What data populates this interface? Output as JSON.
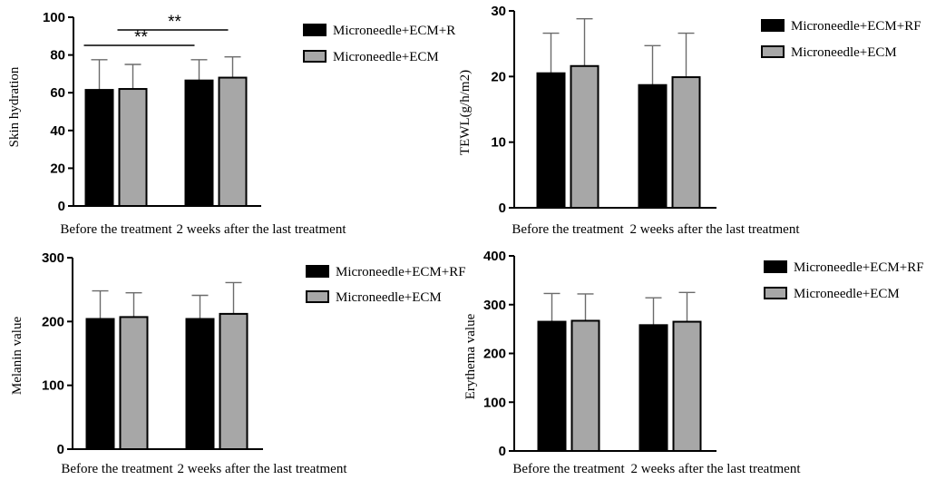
{
  "chart_data": [
    {
      "type": "bar",
      "title": "",
      "ylabel": "Skin hydration",
      "xlabel": "",
      "ylim": [
        0,
        100
      ],
      "yticks": [
        0,
        20,
        40,
        60,
        80,
        100
      ],
      "categories": [
        "Before the treatment",
        "2 weeks after the last treatment"
      ],
      "series": [
        {
          "name": "Microneedle+ECM+R",
          "color": "#000000",
          "values": [
            61.5,
            66.5
          ],
          "errors": [
            16,
            11
          ]
        },
        {
          "name": "Microneedle+ECM",
          "color": "#a7a7a7",
          "values": [
            62,
            68
          ],
          "errors": [
            13,
            11
          ]
        }
      ],
      "significance": [
        {
          "label": "**",
          "from": "Before the treatment",
          "to": "2 weeks after the last treatment",
          "series": "Microneedle+ECM+R"
        },
        {
          "label": "**",
          "from": "Before the treatment",
          "to": "2 weeks after the last treatment",
          "series": "Microneedle+ECM"
        }
      ]
    },
    {
      "type": "bar",
      "title": "",
      "ylabel": "TEWL(g/h/m2)",
      "xlabel": "",
      "ylim": [
        0,
        30
      ],
      "yticks": [
        0,
        10,
        20,
        30
      ],
      "categories": [
        "Before the treatment",
        "2 weeks after the last treatment"
      ],
      "series": [
        {
          "name": "Microneedle+ECM+RF",
          "color": "#000000",
          "values": [
            20.5,
            18.7
          ],
          "errors": [
            6.1,
            6.0
          ]
        },
        {
          "name": "Microneedle+ECM",
          "color": "#a7a7a7",
          "values": [
            21.6,
            19.9
          ],
          "errors": [
            7.2,
            6.7
          ]
        }
      ]
    },
    {
      "type": "bar",
      "title": "",
      "ylabel": "Melanin value",
      "xlabel": "",
      "ylim": [
        0,
        300
      ],
      "yticks": [
        0,
        100,
        200,
        300
      ],
      "categories": [
        "Before the treatment",
        "2 weeks after the last treatment"
      ],
      "series": [
        {
          "name": "Microneedle+ECM+RF",
          "color": "#000000",
          "values": [
            204,
            204
          ],
          "errors": [
            44,
            37
          ]
        },
        {
          "name": "Microneedle+ECM",
          "color": "#a7a7a7",
          "values": [
            207,
            212
          ],
          "errors": [
            38,
            49
          ]
        }
      ]
    },
    {
      "type": "bar",
      "title": "",
      "ylabel": "Erythema value",
      "xlabel": "",
      "ylim": [
        0,
        400
      ],
      "yticks": [
        0,
        100,
        200,
        300,
        400
      ],
      "categories": [
        "Before the treatment",
        "2 weeks after the last treatment"
      ],
      "series": [
        {
          "name": "Microneedle+ECM+RF",
          "color": "#000000",
          "values": [
            265,
            258
          ],
          "errors": [
            58,
            56
          ]
        },
        {
          "name": "Microneedle+ECM",
          "color": "#a7a7a7",
          "values": [
            267,
            265
          ],
          "errors": [
            55,
            60
          ]
        }
      ]
    }
  ]
}
